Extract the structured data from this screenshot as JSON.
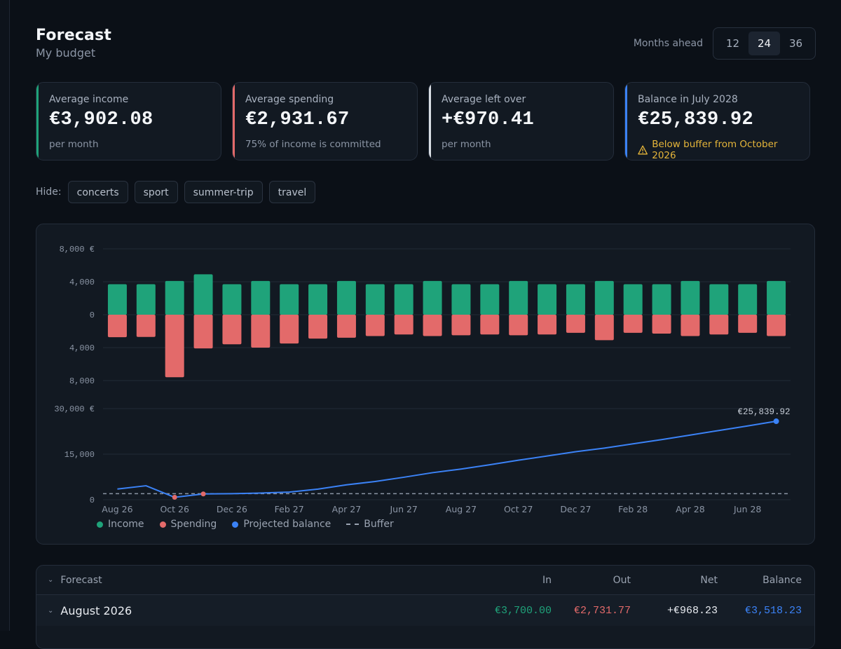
{
  "header": {
    "title": "Forecast",
    "subtitle": "My budget"
  },
  "months_ahead": {
    "label": "Months ahead",
    "options": [
      "12",
      "24",
      "36"
    ],
    "selected": "24"
  },
  "cards": [
    {
      "label": "Average income",
      "value": "€3,902.08",
      "sub": "per month",
      "accent": "#1fa37a"
    },
    {
      "label": "Average spending",
      "value": "€2,931.67",
      "sub": "75% of income is committed",
      "accent": "#e36a6a"
    },
    {
      "label": "Average left over",
      "value": "+€970.41",
      "sub": "per month",
      "accent": "#d9dde3"
    },
    {
      "label": "Balance in July 2028",
      "value": "€25,839.92",
      "sub": "Below buffer from October 2026",
      "accent": "#3b82f6",
      "warning_icon": "warning-triangle-icon"
    }
  ],
  "hide": {
    "label": "Hide:",
    "chips": [
      "concerts",
      "sport",
      "summer-trip",
      "travel"
    ]
  },
  "colors": {
    "income": "#1fa37a",
    "spending": "#e36a6a",
    "balance": "#3b82f6",
    "buffer": "#8b95a5",
    "warning": "#e5b53a"
  },
  "chart_data": [
    {
      "type": "bar",
      "y_ticks": [
        "8,000 €",
        "4,000",
        "0",
        "4,000",
        "8,000"
      ],
      "ylim": [
        -8000,
        8000
      ],
      "series": [
        {
          "name": "Income",
          "values": [
            3700,
            3700,
            4100,
            4900,
            3700,
            4100,
            3700,
            3700,
            4100,
            3700,
            3700,
            4100,
            3700,
            3700,
            4100,
            3700,
            3700,
            4100,
            3700,
            3700,
            4100,
            3700,
            3700,
            4100
          ]
        },
        {
          "name": "Spending",
          "values": [
            -2732,
            -2700,
            -7600,
            -4100,
            -3600,
            -4000,
            -3500,
            -2900,
            -2800,
            -2600,
            -2400,
            -2600,
            -2500,
            -2400,
            -2500,
            -2400,
            -2200,
            -3100,
            -2200,
            -2300,
            -2600,
            -2400,
            -2200,
            -2600
          ]
        }
      ]
    },
    {
      "type": "line",
      "y_ticks": [
        "30,000 €",
        "15,000",
        "0"
      ],
      "ylim": [
        0,
        30000
      ],
      "x_labels": [
        "Aug 26",
        "Oct 26",
        "Dec 26",
        "Feb 27",
        "Apr 27",
        "Jun 27",
        "Aug 27",
        "Oct 27",
        "Dec 27",
        "Feb 28",
        "Apr 28",
        "Jun 28"
      ],
      "series": [
        {
          "name": "Projected balance",
          "values": [
            3518,
            4600,
            800,
            1900,
            2000,
            2200,
            2500,
            3500,
            4900,
            6000,
            7400,
            8900,
            10100,
            11500,
            13000,
            14400,
            15800,
            17000,
            18400,
            19800,
            21300,
            22800,
            24300,
            25840
          ]
        },
        {
          "name": "Buffer",
          "values": [
            2000,
            2000,
            2000,
            2000,
            2000,
            2000,
            2000,
            2000,
            2000,
            2000,
            2000,
            2000,
            2000,
            2000,
            2000,
            2000,
            2000,
            2000,
            2000,
            2000,
            2000,
            2000,
            2000,
            2000
          ]
        }
      ],
      "below_buffer_points": [
        2,
        3
      ],
      "end_label": "€25,839.92"
    }
  ],
  "legend": [
    "Income",
    "Spending",
    "Projected balance",
    "Buffer"
  ],
  "table": {
    "headers": {
      "name": "Forecast",
      "in": "In",
      "out": "Out",
      "net": "Net",
      "balance": "Balance"
    },
    "rows": [
      {
        "name": "August 2026",
        "in": "€3,700.00",
        "out": "€2,731.77",
        "net": "+€968.23",
        "balance": "€3,518.23"
      }
    ]
  }
}
